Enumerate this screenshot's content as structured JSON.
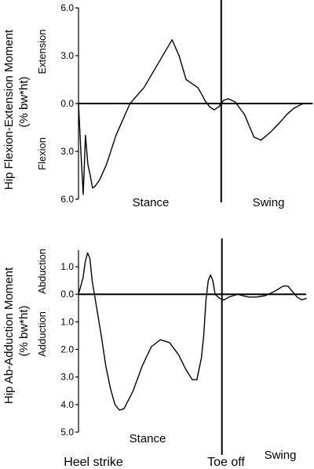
{
  "chart_data": [
    {
      "type": "line",
      "ylabel": "Hip Flexion-Extension Moment",
      "ylabel_unit": "(% bw*ht)",
      "side_labels": {
        "positive": "Extension",
        "negative": "Flexion"
      },
      "yticks": [
        6.0,
        3.0,
        0.0,
        -3.0,
        -6.0
      ],
      "ytick_labels": [
        "6.0",
        "3.0",
        "0.0",
        "3.0",
        "6.0"
      ],
      "ylim": [
        -6.0,
        6.0
      ],
      "xlim": [
        0,
        100
      ],
      "toe_off": 61,
      "phase_labels": {
        "stance": "Stance",
        "swing": "Swing"
      },
      "grid": false,
      "series": [
        {
          "x": [
            0,
            1,
            2,
            3,
            4,
            5,
            6,
            7,
            9,
            12,
            16,
            22,
            28,
            34,
            40,
            43,
            46,
            49,
            51,
            53,
            54,
            56,
            58,
            60,
            62,
            64,
            67,
            69,
            71,
            73,
            75,
            78,
            82,
            86,
            89,
            92,
            96,
            100
          ],
          "y": [
            0,
            -3.0,
            -5.7,
            -2.0,
            -3.8,
            -4.5,
            -5.3,
            -5.2,
            -4.8,
            -3.8,
            -2.0,
            0.0,
            1.0,
            2.5,
            4.0,
            3.0,
            1.5,
            1.2,
            1.0,
            0.5,
            0.2,
            -0.2,
            -0.4,
            -0.2,
            0.2,
            0.3,
            0.1,
            -0.3,
            -0.7,
            -1.4,
            -2.1,
            -2.3,
            -1.8,
            -1.2,
            -0.7,
            -0.3,
            0.0,
            0.0
          ]
        }
      ]
    },
    {
      "type": "line",
      "ylabel": "Hip Ab-Adduction Moment",
      "ylabel_unit": "(% bw*ht)",
      "side_labels": {
        "positive": "Abduction",
        "negative": "Adduction"
      },
      "yticks": [
        1.0,
        0.0,
        -1.0,
        -2.0,
        -3.0,
        -4.0,
        -5.0
      ],
      "ytick_labels": [
        "1.0",
        "0.0",
        "1.0",
        "2.0",
        "3.0",
        "4.0",
        "5.0"
      ],
      "ylim": [
        -5.0,
        1.6
      ],
      "xlim": [
        0,
        100
      ],
      "toe_off": 63,
      "phase_labels": {
        "stance": "Stance",
        "swing": "Swing"
      },
      "grid": false,
      "series": [
        {
          "x": [
            0,
            2,
            3,
            4,
            5,
            6,
            8,
            10,
            12,
            14,
            16,
            18,
            20,
            24,
            28,
            32,
            36,
            40,
            44,
            47,
            50,
            52,
            54,
            55,
            56,
            57,
            58,
            59,
            60,
            62,
            64,
            66,
            68,
            70,
            72,
            75,
            78,
            82,
            86,
            88,
            90,
            92,
            94,
            96,
            98,
            100
          ],
          "y": [
            0,
            0.6,
            1.2,
            1.5,
            1.3,
            0.5,
            -0.5,
            -1.5,
            -2.6,
            -3.4,
            -4.0,
            -4.2,
            -4.15,
            -3.5,
            -2.6,
            -1.9,
            -1.65,
            -1.75,
            -2.2,
            -2.7,
            -3.1,
            -3.1,
            -2.3,
            -1.5,
            -0.2,
            0.5,
            0.7,
            0.5,
            0.0,
            -0.15,
            -0.2,
            -0.1,
            -0.05,
            0.0,
            -0.05,
            -0.1,
            -0.1,
            -0.05,
            0.1,
            0.2,
            0.3,
            0.3,
            0.1,
            -0.1,
            -0.2,
            -0.15
          ]
        }
      ]
    }
  ],
  "events": {
    "heel_strike": "Heel strike",
    "toe_off": "Toe off"
  }
}
